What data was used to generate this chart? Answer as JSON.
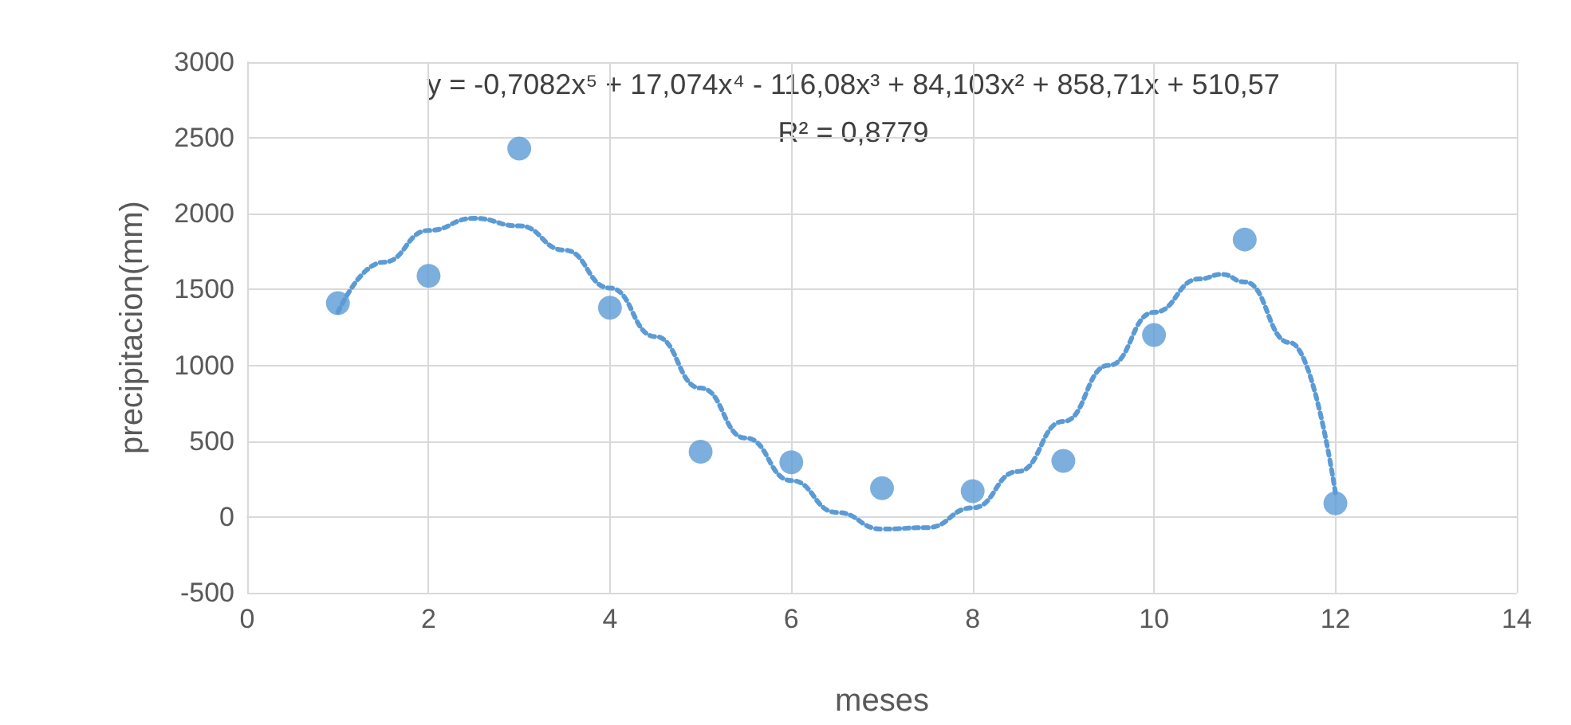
{
  "chart_data": {
    "type": "scatter",
    "xlabel": "meses",
    "ylabel": "precipitacion(mm)",
    "annotations": [
      "y = -0,7082x⁵ + 17,074x⁴ - 116,08x³ + 84,103x² + 858,71x + 510,57",
      "R² = 0,8779"
    ],
    "series": [
      {
        "color": "#5b9bd5",
        "marker": "circle",
        "x": [
          1,
          2,
          3,
          4,
          5,
          6,
          7,
          8,
          9,
          10,
          11,
          12
        ],
        "values": [
          1410,
          1590,
          2430,
          1380,
          430,
          360,
          190,
          170,
          370,
          1200,
          1830,
          90
        ]
      },
      {
        "type": "line",
        "color": "#5b9bd5",
        "line_style": "dotted",
        "marker": "none",
        "x": [
          1,
          1.5,
          2,
          2.5,
          3,
          3.5,
          4,
          4.5,
          5,
          5.5,
          6,
          6.5,
          7,
          7.5,
          8,
          8.5,
          9,
          9.5,
          10,
          10.5,
          10.75,
          11,
          11.5,
          12
        ],
        "values": [
          1350,
          1680,
          1890,
          1970,
          1920,
          1760,
          1510,
          1190,
          850,
          520,
          240,
          30,
          -80,
          -70,
          60,
          300,
          630,
          1000,
          1350,
          1570,
          1600,
          1550,
          1150,
          160
        ]
      }
    ],
    "xlim": [
      0,
      14
    ],
    "xticks": [
      0,
      2,
      4,
      6,
      8,
      10,
      12,
      14
    ],
    "ylim": [
      -500,
      3000
    ],
    "yticks": [
      -500,
      0,
      500,
      1000,
      1500,
      2000,
      2500,
      3000
    ],
    "grid": true
  }
}
